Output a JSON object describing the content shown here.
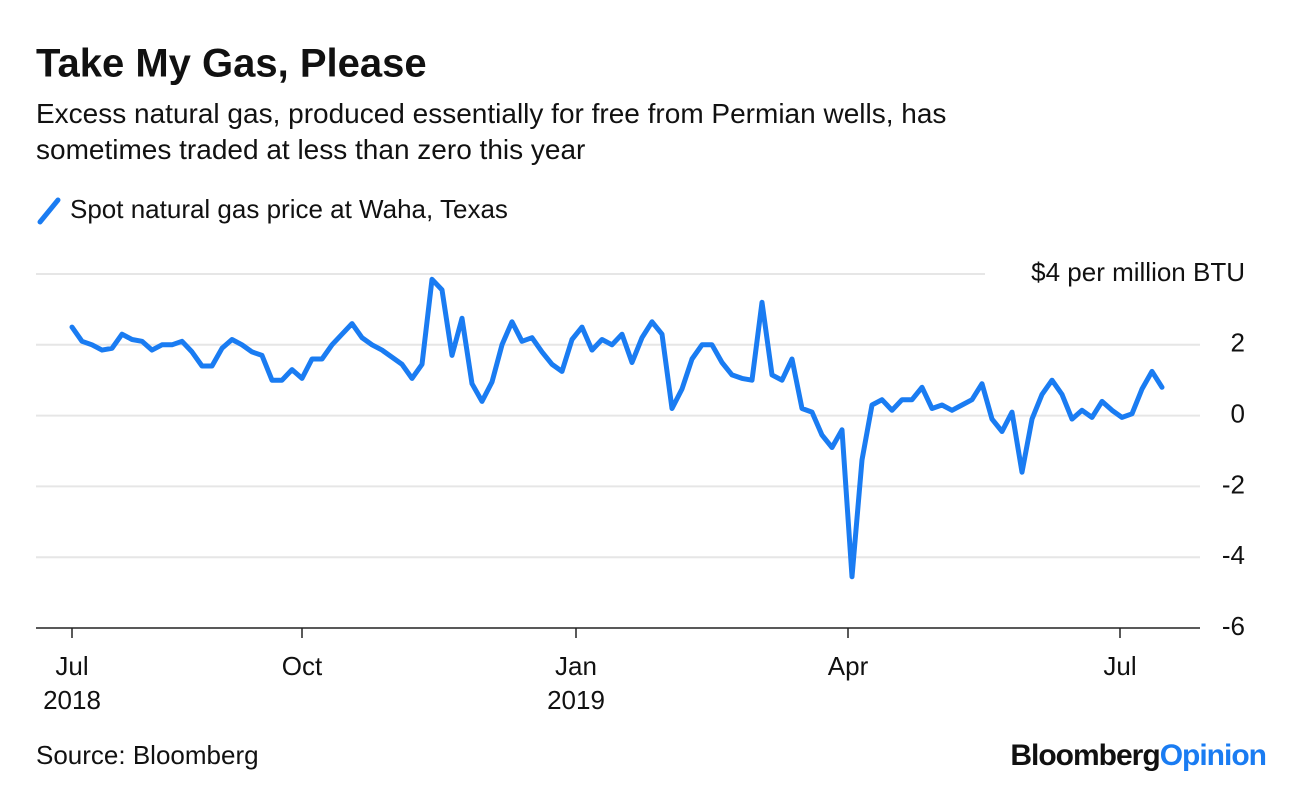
{
  "chart_data": {
    "type": "line",
    "title": "Take My Gas, Please",
    "subtitle": "Excess natural gas, produced essentially for free from Permian wells, has sometimes traded at less than zero this year",
    "source": "Source: Bloomberg",
    "branding": [
      "Bloomberg",
      "Opinion"
    ],
    "series": [
      {
        "name": "Spot natural gas price at Waha, Texas",
        "color": "#1a7cf2",
        "values": [
          2.5,
          2.1,
          2.0,
          1.85,
          1.9,
          2.3,
          2.15,
          2.1,
          1.85,
          2.0,
          2.0,
          2.1,
          1.8,
          1.4,
          1.4,
          1.9,
          2.15,
          2.0,
          1.8,
          1.7,
          1.0,
          1.0,
          1.3,
          1.05,
          1.6,
          1.6,
          2.0,
          2.3,
          2.6,
          2.2,
          2.0,
          1.85,
          1.65,
          1.45,
          1.05,
          1.45,
          3.85,
          3.55,
          1.7,
          2.75,
          0.9,
          0.4,
          0.95,
          2.0,
          2.65,
          2.1,
          2.2,
          1.8,
          1.45,
          1.25,
          2.15,
          2.5,
          1.85,
          2.15,
          2.0,
          2.3,
          1.5,
          2.2,
          2.65,
          2.3,
          0.2,
          0.75,
          1.6,
          2.0,
          2.0,
          1.5,
          1.15,
          1.05,
          1.0,
          3.2,
          1.15,
          1.0,
          1.6,
          0.2,
          0.1,
          -0.55,
          -0.9,
          -0.4,
          -4.55,
          -1.25,
          0.3,
          0.45,
          0.15,
          0.45,
          0.45,
          0.8,
          0.2,
          0.3,
          0.15,
          0.3,
          0.45,
          0.9,
          -0.1,
          -0.45,
          0.1,
          -1.6,
          -0.1,
          0.6,
          1.0,
          0.6,
          -0.1,
          0.15,
          -0.05,
          0.4,
          0.15,
          -0.05,
          0.05,
          0.75,
          1.25,
          0.8
        ]
      }
    ],
    "xlim": [
      0,
      109
    ],
    "xticks": [
      {
        "value": 0,
        "label": "Jul 2018"
      },
      {
        "value": 23,
        "label": "Oct"
      },
      {
        "value": 50.4,
        "label": "Jan 2019"
      },
      {
        "value": 77.6,
        "label": "Apr"
      },
      {
        "value": 104.8,
        "label": "Jul"
      }
    ],
    "ylim": [
      -6,
      4
    ],
    "yticks": [
      -6,
      -4,
      -2,
      0,
      2,
      {
        "value": 4,
        "label": "$4 per million BTU"
      }
    ],
    "grid": true
  }
}
